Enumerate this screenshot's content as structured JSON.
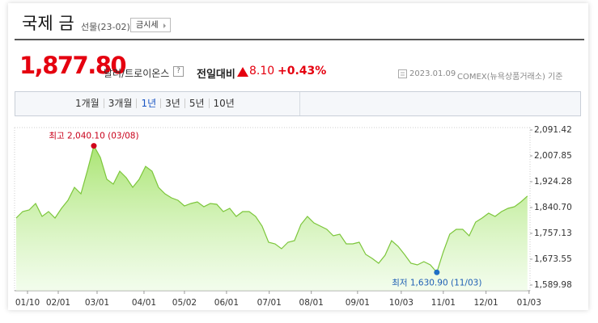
{
  "header": {
    "title": "국제 금",
    "subtitle": "선물(23-02)",
    "button": "금시세"
  },
  "quote": {
    "price": "1,877.80",
    "unit": "달러/트로이온스",
    "help": "?",
    "change_label": "전일대비",
    "change": "8.10",
    "change_pct": "+0.43%",
    "date": "2023.01.09",
    "source": "COMEX(뉴욕상품거래소) 기준"
  },
  "tabs": [
    "1개월",
    "3개월",
    "1년",
    "3년",
    "5년",
    "10년"
  ],
  "selected_tab": 2,
  "chart_data": {
    "type": "area",
    "color": "#7cc63b",
    "values": [
      1806.7,
      1827.6,
      1832.8,
      1853.7,
      1811.9,
      1827.6,
      1806.7,
      1838.0,
      1864.2,
      1905.9,
      1885.1,
      1960.0,
      2040.1,
      2002.6,
      1932.1,
      1916.4,
      1958.2,
      1937.3,
      1905.9,
      1932.1,
      1973.9,
      1958.2,
      1905.9,
      1885.1,
      1872.0,
      1864.2,
      1845.9,
      1853.7,
      1858.9,
      1843.3,
      1853.7,
      1851.1,
      1827.6,
      1838.0,
      1811.9,
      1827.6,
      1827.6,
      1811.9,
      1780.6,
      1728.3,
      1723.1,
      1707.4,
      1728.3,
      1733.6,
      1785.8,
      1811.9,
      1791.0,
      1780.6,
      1770.1,
      1749.2,
      1754.4,
      1723.1,
      1723.1,
      1728.3,
      1689.2,
      1676.1,
      1660.4,
      1686.5,
      1733.6,
      1715.3,
      1689.2,
      1660.4,
      1655.2,
      1665.6,
      1655.2,
      1630.9,
      1697.0,
      1754.4,
      1770.1,
      1770.1,
      1749.2,
      1793.6,
      1806.7,
      1822.4,
      1811.9,
      1827.6,
      1838.0,
      1843.3,
      1858.9,
      1877.8
    ],
    "xlim": [
      -0.25,
      79.4
    ],
    "xticks": [
      {
        "value": 1.75,
        "label": "01/10"
      },
      {
        "value": 6.5,
        "label": "02/01"
      },
      {
        "value": 12.5,
        "label": "03/01"
      },
      {
        "value": 19.75,
        "label": "04/01"
      },
      {
        "value": 26,
        "label": "05/02"
      },
      {
        "value": 32.5,
        "label": "06/01"
      },
      {
        "value": 39.1,
        "label": "07/01"
      },
      {
        "value": 45.6,
        "label": "08/01"
      },
      {
        "value": 52.75,
        "label": "09/01"
      },
      {
        "value": 59.5,
        "label": "10/03"
      },
      {
        "value": 66,
        "label": "11/01"
      },
      {
        "value": 72.6,
        "label": "12/01"
      },
      {
        "value": 79.25,
        "label": "01/03"
      }
    ],
    "ylim": [
      1571.6,
      2099.2
    ],
    "yticks": [
      {
        "value": 2091.42,
        "label": "2,091.42"
      },
      {
        "value": 2007.85,
        "label": "2,007.85"
      },
      {
        "value": 1924.28,
        "label": "1,924.28"
      },
      {
        "value": 1840.7,
        "label": "1,840.70"
      },
      {
        "value": 1757.13,
        "label": "1,757.13"
      },
      {
        "value": 1673.55,
        "label": "1,673.55"
      },
      {
        "value": 1589.98,
        "label": "1,589.98"
      }
    ],
    "annotations": [
      "최고 2,040.10 (03/08)",
      "최저 1,630.90 (11/03)"
    ]
  }
}
